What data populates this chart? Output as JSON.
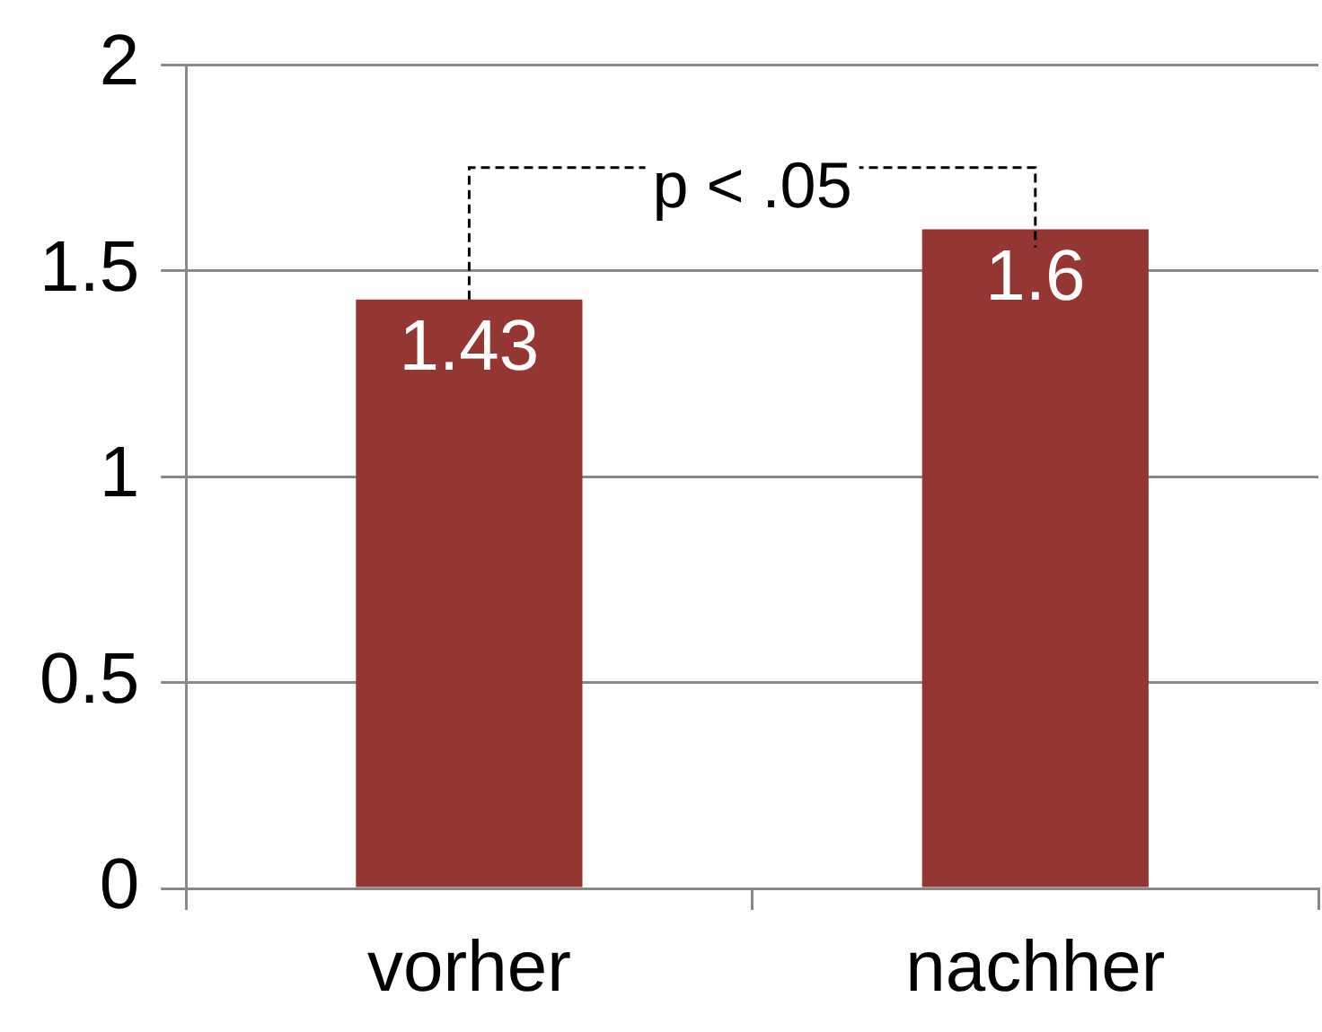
{
  "chart_data": {
    "type": "bar",
    "categories": [
      "vorher",
      "nachher"
    ],
    "values": [
      1.43,
      1.6
    ],
    "color": "#943634",
    "ylim": [
      0,
      2
    ],
    "yticks": [
      0,
      0.5,
      1,
      1.5,
      2
    ],
    "grid": "y",
    "data_labels": true,
    "annotations": [
      "p < .05"
    ]
  }
}
